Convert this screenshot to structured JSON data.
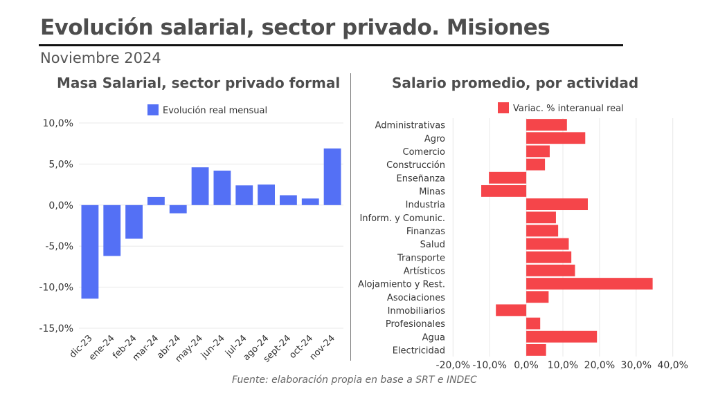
{
  "header": {
    "title": "Evolución salarial, sector privado. Misiones",
    "subtitle": "Noviembre 2024"
  },
  "footer": {
    "source": "Fuente: elaboración propia en base a SRT e INDEC"
  },
  "colors": {
    "left_bar": "#5470f5",
    "right_bar": "#f5454a",
    "grid": "#e8e8e8"
  },
  "chart_data": [
    {
      "type": "bar",
      "orientation": "vertical",
      "title": "Masa Salarial, sector privado formal",
      "legend": {
        "label": "Evolución real mensual",
        "position": "top"
      },
      "categories": [
        "dic-23",
        "ene-24",
        "feb-24",
        "mar-24",
        "abr-24",
        "may-24",
        "jun-24",
        "jul-24",
        "ago-24",
        "sept-24",
        "oct-24",
        "nov-24"
      ],
      "series": [
        {
          "name": "Evolución real mensual",
          "values": [
            -11.4,
            -6.2,
            -4.1,
            1.0,
            -1.0,
            4.6,
            4.2,
            2.4,
            2.5,
            1.2,
            0.8,
            6.9
          ]
        }
      ],
      "xlabel": "",
      "ylabel": "",
      "ylim": [
        -15,
        10
      ],
      "yticks": [
        10,
        5,
        0,
        -5,
        -10,
        -15
      ],
      "ytick_labels": [
        "10,0%",
        "5,0%",
        "0,0%",
        "-5,0%",
        "-10,0%",
        "-15,0%"
      ],
      "grid": true
    },
    {
      "type": "bar",
      "orientation": "horizontal",
      "title": "Salario promedio, por actividad",
      "legend": {
        "label": "Variac. % interanual real",
        "position": "top"
      },
      "categories": [
        "Administrativas",
        "Agro",
        "Comercio",
        "Construcción",
        "Enseñanza",
        "Minas",
        "Industria",
        "Inform. y Comunic.",
        "Finanzas",
        "Salud",
        "Transporte",
        "Artísticos",
        "Alojamiento y Rest.",
        "Asociaciones",
        "Inmobiliarios",
        "Profesionales",
        "Agua",
        "Electricidad"
      ],
      "series": [
        {
          "name": "Variac. % interanual real",
          "values": [
            11.1,
            16.1,
            6.4,
            5.1,
            -10.2,
            -12.3,
            16.8,
            8.1,
            8.7,
            11.6,
            12.3,
            13.3,
            34.5,
            6.1,
            -8.3,
            3.8,
            19.3,
            5.4
          ]
        }
      ],
      "xlabel": "",
      "ylabel": "",
      "xlim": [
        -20,
        40
      ],
      "xticks": [
        -20,
        -10,
        0,
        10,
        20,
        30,
        40
      ],
      "xtick_labels": [
        "-20,0%",
        "-10,0%",
        "0,0%",
        "10,0%",
        "20,0%",
        "30,0%",
        "40,0%"
      ],
      "grid": true
    }
  ]
}
